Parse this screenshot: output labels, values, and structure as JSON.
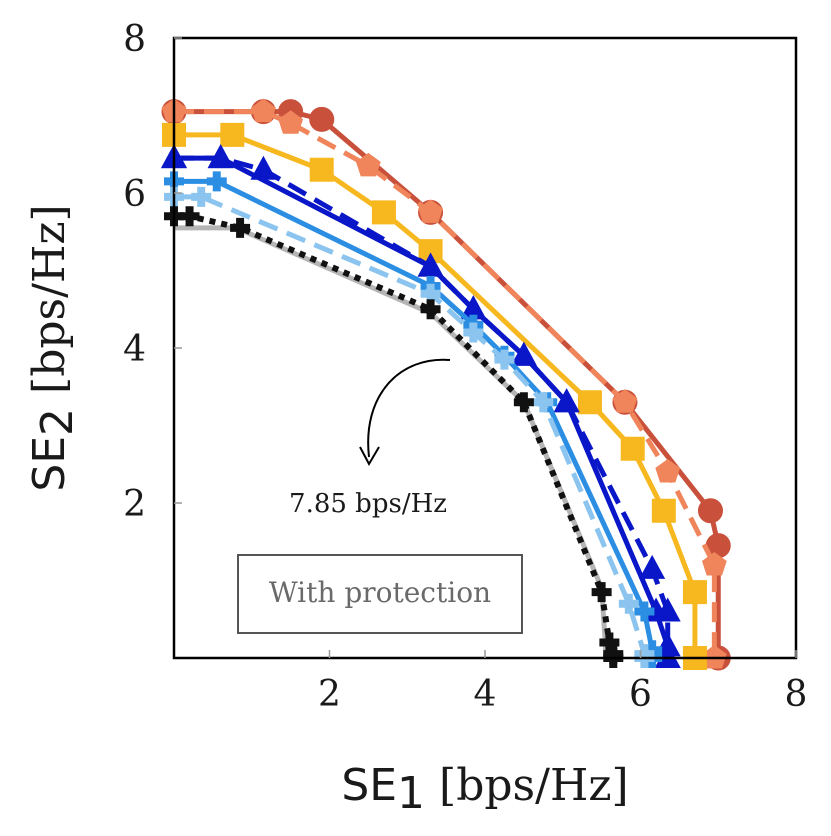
{
  "chart_data": {
    "type": "line",
    "title": "",
    "xlabel_main": "SE",
    "xlabel_sub": "1",
    "xlabel_unit": "[bps/Hz]",
    "ylabel_main": "SE",
    "ylabel_sub": "2",
    "ylabel_unit": "[bps/Hz]",
    "xlim": [
      0,
      8
    ],
    "ylim": [
      0,
      8
    ],
    "xticks": [
      2,
      4,
      6,
      8
    ],
    "yticks": [
      2,
      4,
      6,
      8
    ],
    "xtick_labels": [
      "2",
      "4",
      "6",
      "8"
    ],
    "ytick_labels": [
      "2",
      "4",
      "6",
      "8"
    ],
    "grid": false,
    "annotation_text": "7.85 bps/Hz",
    "box_label": "With protection",
    "series": [
      {
        "color": "#c9503a",
        "dash": "solid",
        "marker": "circle",
        "x": [
          0,
          1.15,
          1.5,
          1.9,
          3.3,
          5.8,
          6.9,
          7.0,
          7.0
        ],
        "y": [
          7.05,
          7.05,
          7.05,
          6.95,
          5.75,
          3.3,
          1.9,
          1.45,
          0
        ]
      },
      {
        "color": "#f0845a",
        "dash": "dashed",
        "marker": "pentagon",
        "x": [
          0,
          1.15,
          1.5,
          2.5,
          3.3,
          5.8,
          6.35,
          6.95,
          6.95
        ],
        "y": [
          7.05,
          7.05,
          6.9,
          6.35,
          5.75,
          3.3,
          2.4,
          1.2,
          0
        ]
      },
      {
        "color": "#f7b81f",
        "dash": "solid",
        "marker": "square",
        "x": [
          0,
          0.75,
          1.9,
          2.7,
          3.3,
          5.35,
          5.9,
          6.3,
          6.7,
          6.7
        ],
        "y": [
          6.75,
          6.75,
          6.3,
          5.75,
          5.25,
          3.3,
          2.7,
          1.9,
          0.85,
          0
        ]
      },
      {
        "color": "#0a17c8",
        "dash": "dashed",
        "marker": "triangle",
        "x": [
          0,
          0.6,
          1.15,
          3.3,
          3.85,
          4.5,
          5.05,
          6.15,
          6.35,
          6.35
        ],
        "y": [
          6.45,
          6.45,
          6.3,
          5.05,
          4.5,
          3.9,
          3.3,
          1.15,
          0.6,
          0
        ]
      },
      {
        "color": "#0a17c8",
        "dash": "solid",
        "marker": "triangle",
        "x": [
          0,
          0.6,
          3.3,
          3.85,
          4.5,
          5.05,
          6.2,
          6.35,
          6.35
        ],
        "y": [
          6.45,
          6.45,
          5.05,
          4.5,
          3.9,
          3.3,
          0.6,
          0.15,
          0
        ]
      },
      {
        "color": "#2b8ee3",
        "dash": "solid",
        "marker": "cross",
        "x": [
          0,
          0.55,
          3.3,
          3.85,
          4.25,
          4.8,
          6.05,
          6.15,
          6.15
        ],
        "y": [
          6.15,
          6.15,
          4.8,
          4.3,
          3.9,
          3.3,
          0.6,
          0.1,
          0
        ]
      },
      {
        "color": "#8bc4ee",
        "dash": "dashed",
        "marker": "cross",
        "x": [
          0,
          0.35,
          3.3,
          3.85,
          4.25,
          4.75,
          5.85,
          6.05,
          6.05
        ],
        "y": [
          5.95,
          5.95,
          4.7,
          4.2,
          3.85,
          3.3,
          0.7,
          0.05,
          0
        ]
      },
      {
        "color": "#b5b5b5",
        "dash": "solid",
        "marker": "none",
        "x": [
          0,
          0.8,
          3.3,
          4.5,
          5.5,
          5.55,
          5.55
        ],
        "y": [
          5.55,
          5.55,
          4.45,
          3.3,
          0.9,
          0.15,
          0
        ]
      },
      {
        "color": "#111111",
        "dash": "dotted",
        "marker": "cross",
        "x": [
          0,
          0.2,
          0.85,
          3.3,
          4.5,
          5.5,
          5.6,
          5.65,
          5.65
        ],
        "y": [
          5.7,
          5.7,
          5.55,
          4.5,
          3.3,
          0.85,
          0.2,
          0.05,
          0
        ]
      }
    ]
  }
}
